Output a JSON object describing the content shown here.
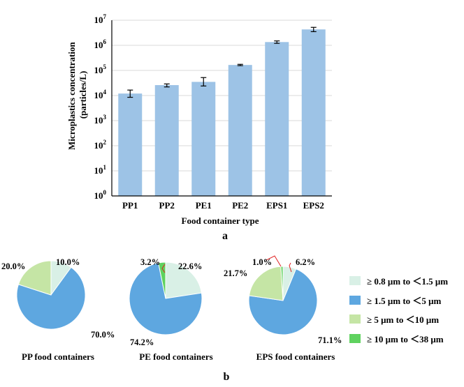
{
  "chart_data": [
    {
      "type": "bar",
      "panel_label": "a",
      "xlabel": "Food container type",
      "ylabel_lines": [
        "Microplastics concentration",
        "(particles/L)"
      ],
      "yscale": "log",
      "ylim": [
        1,
        10000000
      ],
      "ytick_exponents": [
        "0",
        "1",
        "2",
        "3",
        "4",
        "5",
        "6",
        "7"
      ],
      "ytick_base": "10",
      "grid": true,
      "bar_color": "#9dc3e6",
      "categories": [
        "PP1",
        "PP2",
        "PE1",
        "PE2",
        "EPS1",
        "EPS2"
      ],
      "values": [
        12000,
        26000,
        35000,
        165000,
        1350000,
        4300000
      ],
      "error_low": [
        8500,
        22000,
        24000,
        155000,
        1200000,
        3500000
      ],
      "error_high": [
        16500,
        29000,
        52000,
        175000,
        1500000,
        5200000
      ]
    },
    {
      "type": "pie",
      "panel_label": "b",
      "legend": [
        {
          "label": "≥ 0.8 μm to ＜1.5 μm",
          "color": "#d9f0e6"
        },
        {
          "label": "≥ 1.5 μm to ＜5 μm",
          "color": "#5ea7e0"
        },
        {
          "label": "≥  5 μm to ＜10 μm",
          "color": "#c5e5a5"
        },
        {
          "label": "≥ 10 μm to ＜38 μm",
          "color": "#5fd25f"
        }
      ],
      "pies": [
        {
          "title": "PP food containers",
          "slices": [
            {
              "value": 10.0,
              "label": "10.0%"
            },
            {
              "value": 70.0,
              "label": "70.0%"
            },
            {
              "value": 20.0,
              "label": "20.0%"
            }
          ]
        },
        {
          "title": "PE food containers",
          "slices": [
            {
              "value": 22.6,
              "label": "22.6%"
            },
            {
              "value": 74.2,
              "label": "74.2%"
            },
            {
              "value": 0,
              "label": ""
            },
            {
              "value": 3.2,
              "label": "3.2%"
            }
          ]
        },
        {
          "title": "EPS food containers",
          "slices": [
            {
              "value": 6.2,
              "label": "6.2%"
            },
            {
              "value": 71.1,
              "label": "71.1%"
            },
            {
              "value": 21.7,
              "label": "21.7%"
            },
            {
              "value": 1.0,
              "label": "1.0%"
            }
          ]
        }
      ]
    }
  ]
}
